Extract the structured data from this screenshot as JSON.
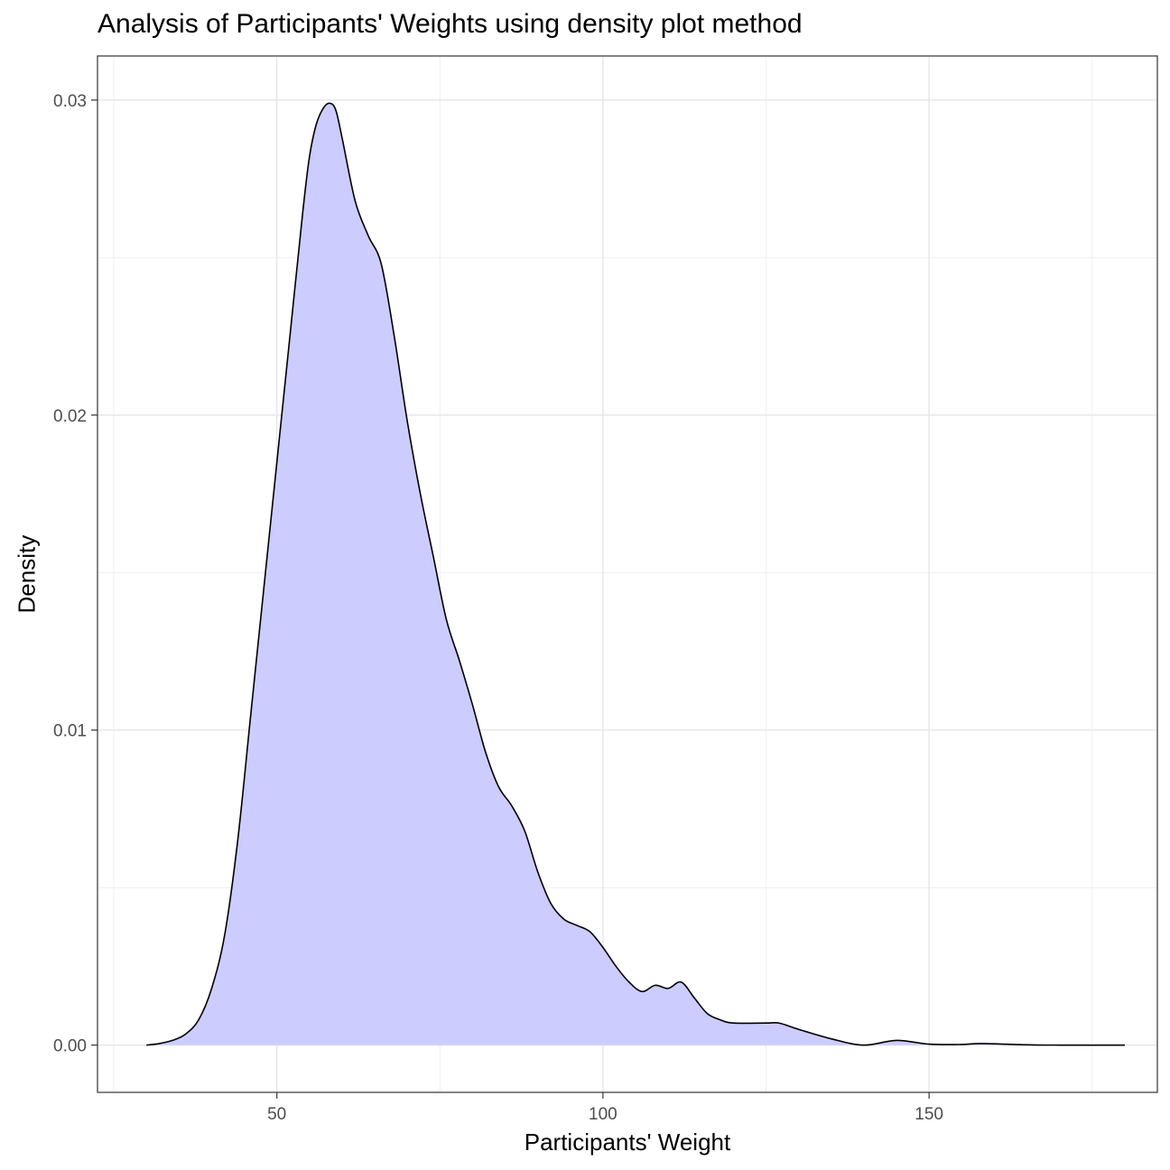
{
  "chart_data": {
    "type": "area",
    "title": "Analysis of Participants' Weights using density plot method",
    "xlabel": "Participants' Weight",
    "ylabel": "Density",
    "xlim": [
      22.5,
      185
    ],
    "ylim": [
      -0.0015,
      0.0314
    ],
    "x_ticks": [
      50,
      100,
      150
    ],
    "x_tick_labels": [
      "50",
      "100",
      "150"
    ],
    "y_ticks": [
      0.0,
      0.01,
      0.02,
      0.03
    ],
    "y_tick_labels": [
      "0.00",
      "0.01",
      "0.02",
      "0.03"
    ],
    "grid": true,
    "fill_color": "#ccccff",
    "line_color": "#000000",
    "series": [
      {
        "x": [
          30,
          32,
          34,
          36,
          38,
          40,
          42,
          44,
          46,
          48,
          50,
          52,
          54,
          55,
          56,
          57,
          58,
          59,
          60,
          62,
          64,
          66,
          68,
          70,
          72,
          74,
          76,
          78,
          80,
          82,
          84,
          86,
          88,
          90,
          92,
          94,
          96,
          98,
          100,
          102,
          104,
          106,
          108,
          110,
          112,
          114,
          116,
          118,
          120,
          125,
          127,
          130,
          135,
          140,
          145,
          150,
          155,
          158,
          165,
          170,
          175,
          180
        ],
        "y": [
          0.0,
          5e-05,
          0.00015,
          0.00035,
          0.0008,
          0.0018,
          0.0035,
          0.0065,
          0.0105,
          0.0145,
          0.0185,
          0.0225,
          0.0265,
          0.0282,
          0.0292,
          0.0297,
          0.0299,
          0.0297,
          0.0288,
          0.0268,
          0.0257,
          0.0248,
          0.0225,
          0.0198,
          0.0175,
          0.0155,
          0.0135,
          0.0122,
          0.0108,
          0.0093,
          0.0082,
          0.0076,
          0.0068,
          0.0055,
          0.0045,
          0.004,
          0.0038,
          0.0036,
          0.0031,
          0.0025,
          0.002,
          0.0017,
          0.0019,
          0.0018,
          0.002,
          0.0015,
          0.001,
          0.0008,
          0.0007,
          0.0007,
          0.0007,
          0.0005,
          0.0002,
          0.0,
          0.00015,
          3e-05,
          2e-05,
          5e-05,
          1e-05,
          0.0,
          0.0,
          0.0
        ]
      }
    ]
  }
}
